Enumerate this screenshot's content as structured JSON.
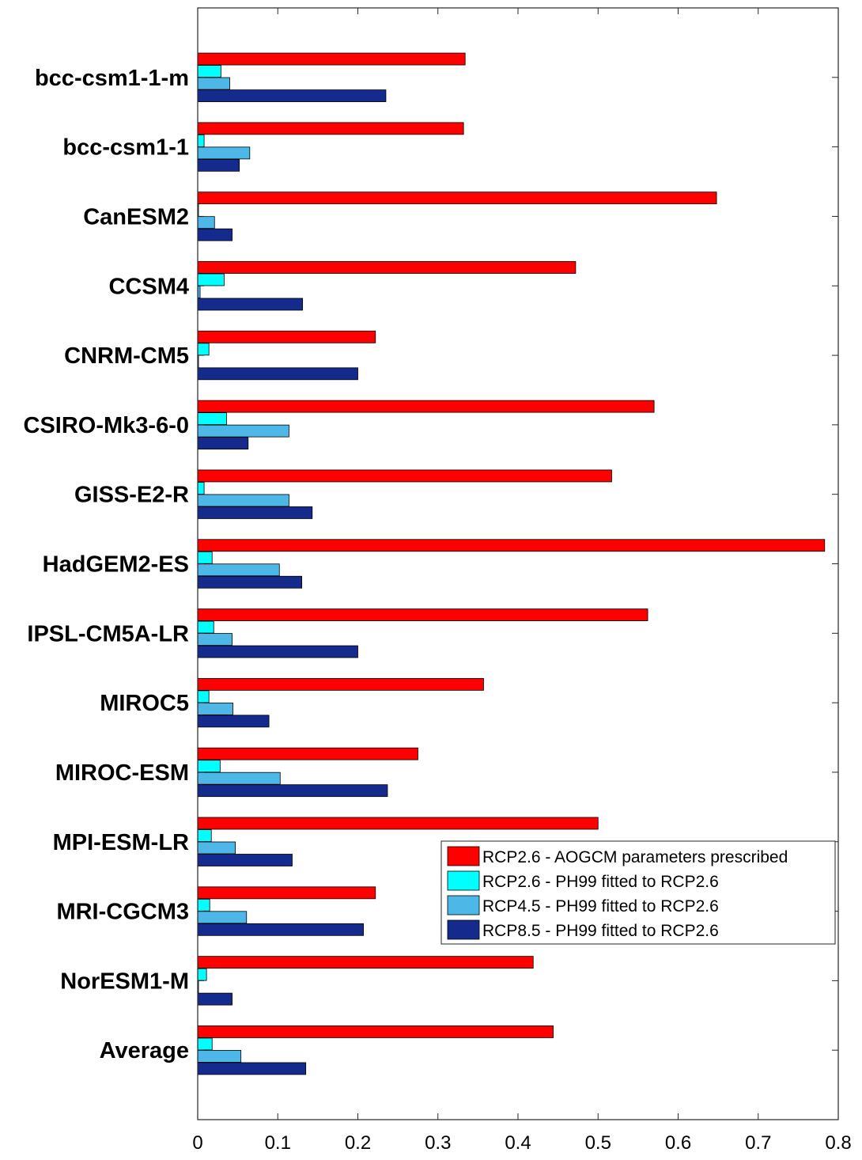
{
  "chart_data": {
    "type": "bar",
    "orientation": "horizontal",
    "title": "",
    "xlabel": "",
    "ylabel": "",
    "xlim": [
      0,
      0.8
    ],
    "x_ticks": [
      0,
      0.1,
      0.2,
      0.3,
      0.4,
      0.5,
      0.6,
      0.7,
      0.8
    ],
    "x_tick_labels": [
      "0",
      "0.1",
      "0.2",
      "0.3",
      "0.4",
      "0.5",
      "0.6",
      "0.7",
      "0.8"
    ],
    "grid": false,
    "legend_position": "lower-right",
    "categories": [
      "bcc-csm1-1-m",
      "bcc-csm1-1",
      "CanESM2",
      "CCSM4",
      "CNRM-CM5",
      "CSIRO-Mk3-6-0",
      "GISS-E2-R",
      "HadGEM2-ES",
      "IPSL-CM5A-LR",
      "MIROC5",
      "MIROC-ESM",
      "MPI-ESM-LR",
      "MRI-CGCM3",
      "NorESM1-M",
      "Average"
    ],
    "series": [
      {
        "name": "RCP2.6 - AOGCM parameters prescribed",
        "color": "#ff0000",
        "values": [
          0.334,
          0.332,
          0.648,
          0.472,
          0.222,
          0.57,
          0.517,
          0.783,
          0.562,
          0.357,
          0.275,
          0.5,
          0.222,
          0.419,
          0.444
        ]
      },
      {
        "name": "RCP2.6 - PH99 fitted to RCP2.6",
        "color": "#00ffff",
        "values": [
          0.029,
          0.008,
          0.001,
          0.033,
          0.014,
          0.036,
          0.008,
          0.018,
          0.02,
          0.014,
          0.028,
          0.017,
          0.015,
          0.011,
          0.018
        ]
      },
      {
        "name": "RCP4.5 - PH99 fitted to RCP2.6",
        "color": "#4db8e8",
        "values": [
          0.04,
          0.065,
          0.021,
          0.003,
          0.001,
          0.114,
          0.114,
          0.102,
          0.043,
          0.044,
          0.103,
          0.047,
          0.061,
          0.001,
          0.054
        ]
      },
      {
        "name": "RCP8.5 - PH99 fitted to RCP2.6",
        "color": "#142a8c",
        "values": [
          0.235,
          0.052,
          0.043,
          0.131,
          0.2,
          0.063,
          0.143,
          0.13,
          0.2,
          0.089,
          0.237,
          0.118,
          0.207,
          0.043,
          0.135
        ]
      }
    ]
  }
}
